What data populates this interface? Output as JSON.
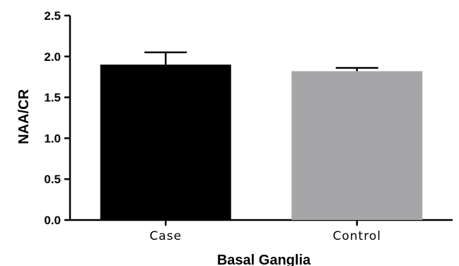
{
  "chart_data": {
    "type": "bar",
    "title": "",
    "xlabel": "Basal Ganglia",
    "ylabel": "NAA/CR",
    "categories": [
      "Case",
      "Control"
    ],
    "values": [
      1.9,
      1.82
    ],
    "error_upper": [
      0.15,
      0.04
    ],
    "bar_colors": [
      "#000000",
      "#a6a6a8"
    ],
    "ylim": [
      0,
      2.5
    ],
    "yticks": [
      "0.0",
      "0.5",
      "1.0",
      "1.5",
      "2.0",
      "2.5"
    ],
    "grid": false,
    "legend": "none"
  }
}
